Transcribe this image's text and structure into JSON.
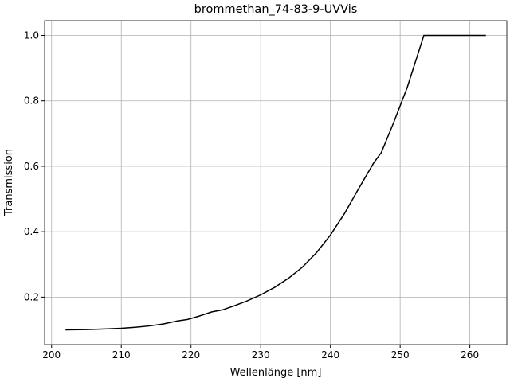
{
  "chart_data": {
    "type": "line",
    "title": "brommethan_74-83-9-UVVis",
    "xlabel": "Wellenlänge [nm]",
    "ylabel": "Transmission",
    "x": [
      202,
      205,
      208,
      210,
      212,
      214,
      216,
      218,
      219.5,
      221,
      223,
      224.5,
      226,
      228,
      230,
      232,
      234,
      236,
      238,
      240,
      242,
      244,
      246.2,
      247.3,
      249,
      251,
      253.4,
      256,
      259,
      262.3
    ],
    "series": [
      {
        "color": "#000000",
        "values": [
          0.1,
          0.101,
          0.103,
          0.105,
          0.108,
          0.112,
          0.118,
          0.127,
          0.132,
          0.141,
          0.155,
          0.161,
          0.172,
          0.188,
          0.207,
          0.23,
          0.258,
          0.292,
          0.336,
          0.39,
          0.455,
          0.53,
          0.61,
          0.642,
          0.73,
          0.84,
          1.0,
          1.0,
          1.0,
          1.0
        ]
      }
    ],
    "xlim": [
      199.0,
      265.3
    ],
    "ylim": [
      0.055,
      1.045
    ],
    "xticks": [
      200,
      210,
      220,
      230,
      240,
      250,
      260
    ],
    "yticks": [
      0.2,
      0.4,
      0.6,
      0.8,
      {
        "value": 1,
        "label": "1.0"
      }
    ],
    "grid": true
  }
}
